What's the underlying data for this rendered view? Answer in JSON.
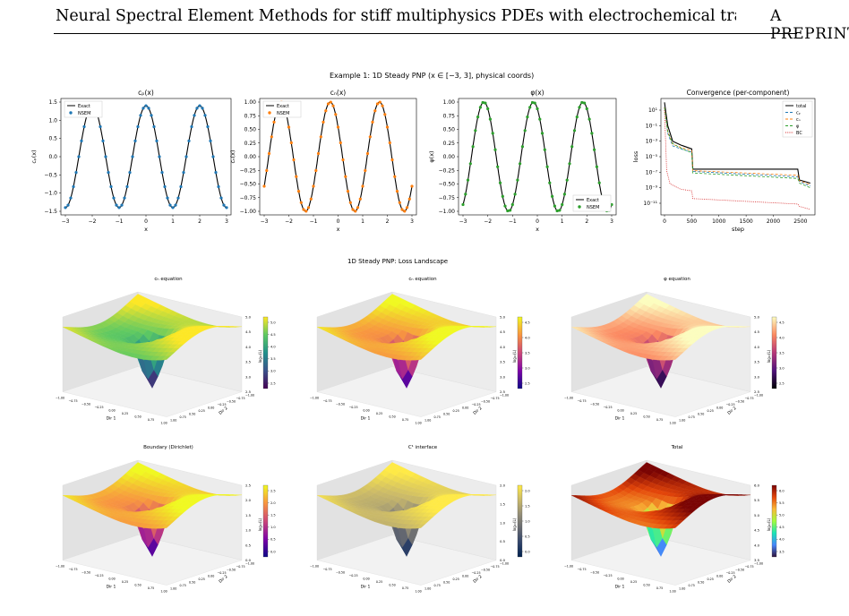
{
  "header": {
    "title": "Neural Spectral Element Methods for stiff multiphysics PDEs with electrochemical transport benchmarks",
    "tag": "A PREPRINT"
  },
  "figure1": {
    "suptitle": "Example 1: 1D Steady PNP  (x ∈ [−3, 3], physical coords)",
    "panels": [
      {
        "title": "cₚ(x)",
        "ylabel": "cₚ(x)",
        "xlabel": "x",
        "color": "#1f77b4",
        "legend": [
          "Exact",
          "NSEM"
        ],
        "yticks": [
          "1.5",
          "1.0",
          "0.5",
          "0.0",
          "−0.5",
          "−1.0",
          "−1.5"
        ],
        "ylim": [
          -1.5,
          1.5
        ],
        "amp": 1.4,
        "phase": 0.0
      },
      {
        "title": "cₙ(x)",
        "ylabel": "cₙ(x)",
        "xlabel": "x",
        "color": "#ff7f0e",
        "legend": [
          "Exact",
          "NSEM"
        ],
        "yticks": [
          "1.00",
          "0.75",
          "0.50",
          "0.25",
          "0.00",
          "−0.25",
          "−0.50",
          "−0.75",
          "−1.00"
        ],
        "ylim": [
          -1.0,
          1.0
        ],
        "amp": 1.0,
        "phase": 1.0
      },
      {
        "title": "φ(x)",
        "ylabel": "φ(x)",
        "xlabel": "x",
        "color": "#2ca02c",
        "legend": [
          "Exact",
          "NSEM"
        ],
        "yticks": [
          "1.00",
          "0.75",
          "0.50",
          "0.25",
          "0.00",
          "−0.25",
          "−0.50",
          "−0.75",
          "−1.00"
        ],
        "ylim": [
          -1.0,
          1.0
        ],
        "amp": 1.0,
        "phase": 0.5
      }
    ],
    "xticks": [
      "−3",
      "−2",
      "−1",
      "0",
      "1",
      "2",
      "3"
    ],
    "convergence": {
      "title": "Convergence (per-component)",
      "xlabel": "step",
      "ylabel": "loss",
      "xticks": [
        "0",
        "500",
        "1000",
        "1500",
        "2000",
        "2500"
      ],
      "yticks": [
        "10¹",
        "10⁻¹",
        "10⁻³",
        "10⁻⁵",
        "10⁻⁷",
        "10⁻⁹",
        "10⁻¹¹"
      ],
      "legend": [
        "total",
        "cₚ",
        "cₙ",
        "φ",
        "BC"
      ],
      "colors": [
        "#000000",
        "#1f77b4",
        "#ff7f0e",
        "#2ca02c",
        "#d62728"
      ]
    }
  },
  "figure2": {
    "suptitle": "1D Steady PNP: Loss Landscape",
    "panels": [
      {
        "title": "cₕ equation",
        "cmap": [
          "#440154",
          "#3b528b",
          "#21918c",
          "#5ec962",
          "#fde725"
        ],
        "cbticks": [
          "5.0",
          "4.5",
          "4.0",
          "3.5",
          "3.0",
          "2.5"
        ],
        "zticks": [
          "5.0",
          "4.5",
          "4.0",
          "3.5",
          "3.0",
          "2.5"
        ]
      },
      {
        "title": "cₙ equation",
        "cmap": [
          "#0d0887",
          "#7e03a8",
          "#cc4778",
          "#f89540",
          "#f0f921"
        ],
        "cbticks": [
          "4.5",
          "4.0",
          "3.5",
          "3.0",
          "2.5"
        ],
        "zticks": [
          "5.0",
          "4.5",
          "4.0",
          "3.5",
          "3.0",
          "2.5"
        ]
      },
      {
        "title": "φ equation",
        "cmap": [
          "#000004",
          "#51127c",
          "#b73779",
          "#fc8961",
          "#fcfdbf"
        ],
        "cbticks": [
          "4.5",
          "4.0",
          "3.5",
          "3.0",
          "2.5"
        ],
        "zticks": [
          "5.0",
          "4.5",
          "4.0",
          "3.5",
          "3.0",
          "2.5"
        ]
      },
      {
        "title": "Boundary (Dirichlet)",
        "cmap": [
          "#0d0887",
          "#7e03a8",
          "#cc4778",
          "#f89540",
          "#f0f921"
        ],
        "cbticks": [
          "2.5",
          "2.0",
          "1.5",
          "1.0",
          "0.5",
          "0.0"
        ],
        "zticks": [
          "2.5",
          "2.0",
          "1.5",
          "1.0",
          "0.5",
          "0.0"
        ]
      },
      {
        "title": "C¹ interface",
        "cmap": [
          "#00204d",
          "#31446b",
          "#666970",
          "#958f78",
          "#cbba69",
          "#ffea46"
        ],
        "cbticks": [
          "2.0",
          "1.5",
          "1.0",
          "0.5",
          "0.0"
        ],
        "zticks": [
          "2.0",
          "1.5",
          "1.0",
          "0.5",
          "0.0"
        ]
      },
      {
        "title": "Total",
        "cmap": [
          "#30123b",
          "#4686fb",
          "#1ae4b6",
          "#a2fc3c",
          "#faba39",
          "#e4460a",
          "#7a0403"
        ],
        "cbticks": [
          "6.0",
          "5.5",
          "5.0",
          "4.5",
          "4.0",
          "3.5"
        ],
        "zticks": [
          "6.0",
          "5.5",
          "5.0",
          "4.5",
          "4.0",
          "3.5"
        ]
      }
    ],
    "zlabel": "log₁₀(L)",
    "axis1": "Dir 1",
    "axis2": "Dir 2",
    "dirticks": [
      "−1.00",
      "−0.75",
      "−0.50",
      "−0.25",
      "0.00",
      "0.25",
      "0.50",
      "0.75",
      "1.00"
    ]
  }
}
